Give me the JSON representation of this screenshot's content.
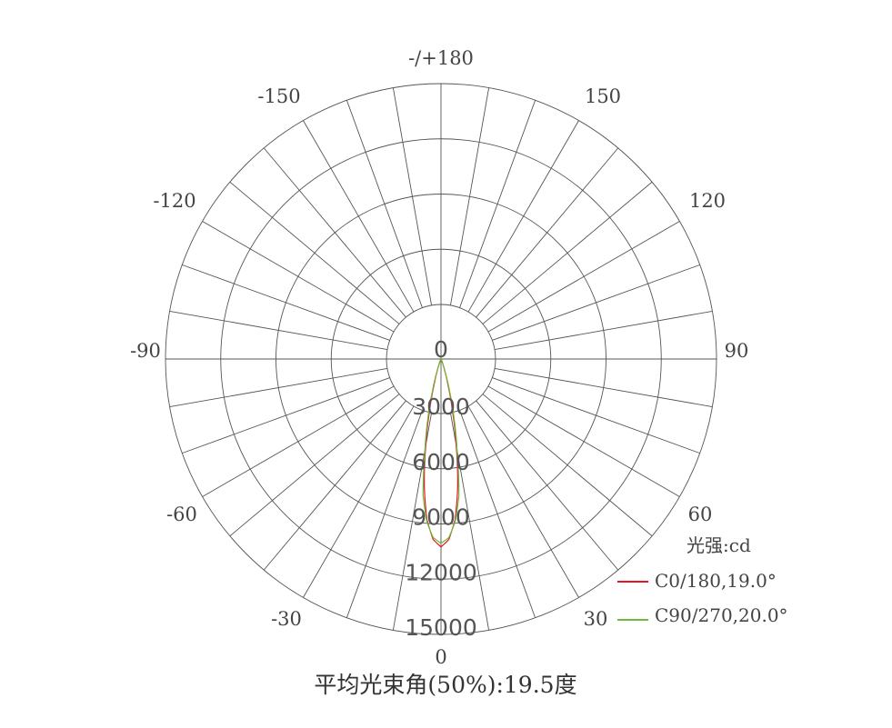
{
  "chart_data": {
    "type": "polar-line",
    "title": "平均光束角(50%):19.5度",
    "unit_label": "光强:cd",
    "angle_labels": [
      {
        "angle": 0,
        "text": "0"
      },
      {
        "angle": 30,
        "text": "30"
      },
      {
        "angle": 60,
        "text": "60"
      },
      {
        "angle": 90,
        "text": "90"
      },
      {
        "angle": 120,
        "text": "120"
      },
      {
        "angle": 150,
        "text": "150"
      },
      {
        "angle": 180,
        "text": "-/+180"
      },
      {
        "angle": -30,
        "text": "-30"
      },
      {
        "angle": -60,
        "text": "-60"
      },
      {
        "angle": -90,
        "text": "-90"
      },
      {
        "angle": -120,
        "text": "-120"
      },
      {
        "angle": -150,
        "text": "-150"
      }
    ],
    "radial_ticks": [
      0,
      3000,
      6000,
      9000,
      12000,
      15000
    ],
    "radial_tick_labels": [
      "0",
      "3000",
      "6000",
      "9000",
      "12000",
      "15000"
    ],
    "rlim": [
      0,
      15000
    ],
    "angle_grid_step": 10,
    "grid": true,
    "legend_position": "bottom-right",
    "series": [
      {
        "name": "C0/180,19.0°",
        "color": "#e8141e",
        "angles": [
          0,
          2.5,
          5,
          7.5,
          10,
          12.5,
          15,
          17.5,
          20,
          25,
          30,
          40,
          90
        ],
        "values": [
          10250,
          9850,
          8800,
          7000,
          4800,
          2900,
          1500,
          700,
          280,
          60,
          10,
          0,
          0
        ]
      },
      {
        "name": "C90/270,20.0°",
        "color": "#6dbb3a",
        "angles": [
          0,
          2.5,
          5,
          7.5,
          10,
          12.5,
          15,
          17.5,
          20,
          25,
          30,
          40,
          90
        ],
        "values": [
          10050,
          9750,
          8900,
          7500,
          5050,
          3300,
          1800,
          850,
          350,
          90,
          20,
          0,
          0
        ]
      }
    ]
  }
}
